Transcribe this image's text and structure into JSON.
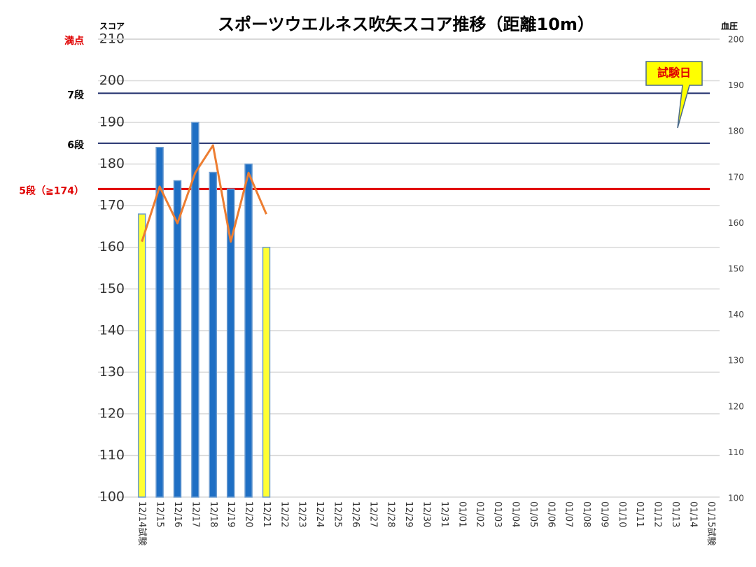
{
  "chart_data": {
    "type": "bar",
    "title": "スポーツウエルネス吹矢スコア推移（距離10m）",
    "y_label": "スコア",
    "y2_label": "血圧",
    "categories": [
      "12/14試験",
      "12/15",
      "12/16",
      "12/17",
      "12/18",
      "12/19",
      "12/20",
      "12/21",
      "12/22",
      "12/23",
      "12/24",
      "12/25",
      "12/26",
      "12/27",
      "12/28",
      "12/29",
      "12/30",
      "12/31",
      "01/01",
      "01/02",
      "01/03",
      "01/04",
      "01/05",
      "01/06",
      "01/07",
      "01/08",
      "01/09",
      "01/10",
      "01/11",
      "01/12",
      "01/13",
      "01/14",
      "01/15試験"
    ],
    "series": [
      {
        "name": "スコア",
        "type": "bar",
        "color": "#1f6fc4",
        "colors": [
          "#ffff33",
          "#1f6fc4",
          "#1f6fc4",
          "#1f6fc4",
          "#1f6fc4",
          "#1f6fc4",
          "#1f6fc4",
          "#ffff33",
          null,
          null,
          null,
          null,
          null,
          null,
          null,
          null,
          null,
          null,
          null,
          null,
          null,
          null,
          null,
          null,
          null,
          null,
          null,
          null,
          null,
          null,
          null,
          null,
          null
        ],
        "values": [
          168,
          184,
          176,
          190,
          178,
          174,
          180,
          160,
          null,
          null,
          null,
          null,
          null,
          null,
          null,
          null,
          null,
          null,
          null,
          null,
          null,
          null,
          null,
          null,
          null,
          null,
          null,
          null,
          null,
          null,
          null,
          null,
          null
        ]
      },
      {
        "name": "血圧",
        "type": "line",
        "axis": "y2",
        "color": "#ed7d31",
        "values": [
          156,
          168,
          160,
          171,
          177,
          156,
          171,
          162,
          null,
          null,
          null,
          null,
          null,
          null,
          null,
          null,
          null,
          null,
          null,
          null,
          null,
          null,
          null,
          null,
          null,
          null,
          null,
          null,
          null,
          null,
          null,
          null,
          null
        ]
      }
    ],
    "ylim": [
      100,
      210
    ],
    "yticks": [
      100,
      110,
      120,
      130,
      140,
      150,
      160,
      170,
      180,
      190,
      200,
      210
    ],
    "y2lim": [
      100,
      200
    ],
    "y2ticks": [
      100,
      110,
      120,
      130,
      140,
      150,
      160,
      170,
      180,
      190,
      200
    ],
    "grid": true,
    "reference_lines": [
      {
        "label": "満点",
        "value": 210,
        "color": "#d9d9d9",
        "label_color": "#e00000"
      },
      {
        "label": "7段",
        "value": 197,
        "color": "#1f2d6b",
        "label_color": "#000000"
      },
      {
        "label": "6段",
        "value": 185,
        "color": "#1f2d6b",
        "label_color": "#000000"
      },
      {
        "label": "5段（≧174）",
        "value": 174,
        "color": "#e00000",
        "label_color": "#e00000"
      }
    ],
    "annotation": "試験日"
  }
}
